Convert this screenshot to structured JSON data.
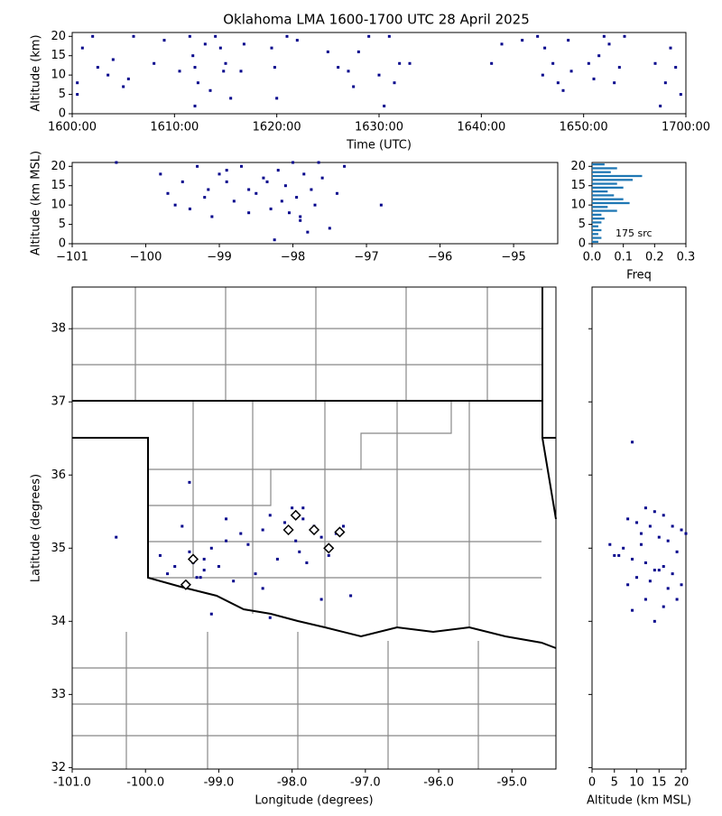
{
  "chart_data": [
    {
      "type": "scatter",
      "title": "Oklahoma LMA 1600-1700 UTC 28 April 2025",
      "xlabel": "Time (UTC)",
      "ylabel": "Altitude (km)",
      "color": "#00008b",
      "xlim": [
        0,
        60
      ],
      "xticks": [
        {
          "value": 0,
          "label": "1600:00"
        },
        {
          "value": 10,
          "label": "1610:00"
        },
        {
          "value": 20,
          "label": "1620:00"
        },
        {
          "value": 30,
          "label": "1630:00"
        },
        {
          "value": 40,
          "label": "1640:00"
        },
        {
          "value": 50,
          "label": "1650:00"
        },
        {
          "value": 60,
          "label": "1700:00"
        }
      ],
      "ylim": [
        0,
        21
      ],
      "yticks": [
        0,
        5,
        10,
        15,
        20
      ],
      "x": [
        1,
        2,
        0.5,
        0.5,
        2.5,
        3.5,
        4,
        5,
        5.5,
        6,
        8,
        9,
        10.5,
        11.5,
        11.8,
        12,
        12.3,
        12,
        13,
        13.5,
        14,
        14.5,
        14.8,
        15,
        15.5,
        16.5,
        16.8,
        19.5,
        19.8,
        20,
        21,
        22,
        25,
        26,
        27,
        27.5,
        28,
        29,
        30,
        30.5,
        31,
        31.5,
        32,
        33,
        41,
        42,
        44,
        45.5,
        46,
        46.2,
        47,
        47.5,
        48,
        48.5,
        48.8,
        50.5,
        51,
        51.5,
        52,
        52.5,
        53,
        53.5,
        54,
        57,
        58,
        58.5,
        59,
        59.5,
        57.5
      ],
      "y": [
        17,
        20,
        8,
        5,
        12,
        10,
        14,
        7,
        9,
        20,
        13,
        19,
        11,
        20,
        15,
        12,
        8,
        2,
        18,
        6,
        20,
        17,
        11,
        13,
        4,
        11,
        18,
        17,
        12,
        4,
        20,
        19,
        16,
        12,
        11,
        7,
        16,
        20,
        10,
        2,
        20,
        8,
        13,
        13,
        13,
        18,
        19,
        20,
        10,
        17,
        13,
        8,
        6,
        19,
        11,
        13,
        9,
        15,
        20,
        18,
        8,
        12,
        20,
        13,
        8,
        17,
        12,
        5,
        2
      ]
    },
    {
      "type": "scatter",
      "ylabel": "Altitude (km MSL)",
      "color": "#00008b",
      "xlim": [
        -101,
        -94.4
      ],
      "xticks": [
        {
          "value": -101,
          "label": "−101"
        },
        {
          "value": -100,
          "label": "−100"
        },
        {
          "value": -99,
          "label": "−99"
        },
        {
          "value": -98,
          "label": "−98"
        },
        {
          "value": -97,
          "label": "−97"
        },
        {
          "value": -96,
          "label": "−96"
        },
        {
          "value": -95,
          "label": "−95"
        }
      ],
      "ylim": [
        0,
        21
      ],
      "yticks": [
        0,
        5,
        10,
        15,
        20
      ],
      "x": [
        -100.4,
        -99.8,
        -99.7,
        -99.6,
        -99.5,
        -99.4,
        -99.3,
        -99.2,
        -99.1,
        -99.0,
        -98.9,
        -98.8,
        -98.7,
        -98.6,
        -98.5,
        -98.4,
        -98.3,
        -98.25,
        -98.2,
        -98.1,
        -98.05,
        -98.0,
        -97.95,
        -97.9,
        -97.85,
        -97.8,
        -97.75,
        -97.7,
        -97.6,
        -97.5,
        -97.4,
        -97.3,
        -96.8,
        -98.15,
        -98.35,
        -99.15,
        -98.9,
        -97.9,
        -97.65,
        -98.6
      ],
      "y": [
        21,
        18,
        13,
        10,
        16,
        9,
        20,
        12,
        7,
        18,
        16,
        11,
        20,
        14,
        13,
        17,
        9,
        1,
        19,
        15,
        8,
        21,
        12,
        6,
        18,
        3,
        14,
        10,
        17,
        4,
        13,
        20,
        10,
        11,
        16,
        14,
        19,
        7,
        21,
        8
      ]
    },
    {
      "type": "histogram",
      "xlabel": "Freq",
      "color": "#1f77b4",
      "annotation": "175 src",
      "xlim": [
        0,
        0.3
      ],
      "xticks": [
        {
          "value": 0,
          "label": "0.0"
        },
        0.1,
        0.2,
        0.3
      ],
      "ylim": [
        0,
        21
      ],
      "yticks": [
        0,
        5,
        10,
        15,
        20
      ],
      "bins": [
        0,
        1,
        2,
        3,
        4,
        5,
        6,
        7,
        8,
        9,
        10,
        11,
        12,
        13,
        14,
        15,
        16,
        17,
        18,
        19,
        20,
        21
      ],
      "values": [
        0.02,
        0.03,
        0.02,
        0.03,
        0.02,
        0.03,
        0.04,
        0.03,
        0.08,
        0.05,
        0.12,
        0.1,
        0.07,
        0.05,
        0.1,
        0.08,
        0.13,
        0.16,
        0.06,
        0.08,
        0.04
      ]
    },
    {
      "type": "map",
      "xlabel": "Longitude (degrees)",
      "ylabel": "Latitude (degrees)",
      "color": "#00008b",
      "xlim": [
        -101,
        -94.4
      ],
      "xticks": [
        {
          "value": -101,
          "label": "-101.0"
        },
        {
          "value": -100,
          "label": "-100.0"
        },
        {
          "value": -99,
          "label": "-99.0"
        },
        {
          "value": -98,
          "label": "-98.0"
        },
        {
          "value": -97,
          "label": "-97.0"
        },
        {
          "value": -96,
          "label": "-96.0"
        },
        {
          "value": -95,
          "label": "-95.0"
        }
      ],
      "ylim": [
        31.98,
        38.57
      ],
      "yticks": [
        32,
        33,
        34,
        35,
        36,
        37,
        38
      ],
      "x": [
        -100.4,
        -99.8,
        -99.7,
        -99.6,
        -99.5,
        -99.4,
        -99.35,
        -99.3,
        -99.2,
        -99.1,
        -99.0,
        -98.9,
        -98.8,
        -98.7,
        -98.6,
        -98.5,
        -98.4,
        -98.3,
        -98.2,
        -98.1,
        -98.0,
        -97.95,
        -97.9,
        -97.85,
        -97.8,
        -97.7,
        -97.6,
        -97.5,
        -97.4,
        -97.3,
        -97.2,
        -99.1,
        -98.3,
        -99.4,
        -99.25,
        -98.9,
        -97.85,
        -98.4,
        -99.2,
        -97.6
      ],
      "y": [
        35.15,
        34.9,
        34.65,
        34.75,
        35.3,
        34.95,
        34.8,
        34.6,
        34.7,
        35.0,
        34.75,
        35.1,
        34.55,
        35.2,
        35.05,
        34.65,
        35.25,
        35.45,
        34.85,
        35.35,
        35.55,
        35.1,
        34.95,
        35.4,
        34.8,
        35.3,
        35.15,
        34.9,
        35.2,
        35.3,
        34.35,
        34.1,
        34.05,
        35.9,
        34.6,
        35.4,
        35.55,
        34.45,
        34.85,
        34.3
      ],
      "stations": {
        "x": [
          -97.95,
          -98.05,
          -97.7,
          -97.35,
          -97.5,
          -99.35,
          -99.45
        ],
        "y": [
          35.45,
          35.25,
          35.25,
          35.22,
          35.0,
          34.85,
          34.5
        ]
      }
    },
    {
      "type": "scatter",
      "xlabel": "Altitude (km MSL)",
      "color": "#00008b",
      "xlim": [
        0,
        21
      ],
      "xticks": [
        0,
        5,
        10,
        15,
        20
      ],
      "ylim": [
        31.98,
        38.57
      ],
      "yticks": [
        32,
        33,
        34,
        35,
        36,
        37,
        38
      ],
      "x": [
        9,
        12,
        14,
        16,
        8,
        10,
        13,
        18,
        20,
        11,
        15,
        17,
        4,
        7,
        19,
        6,
        9,
        12,
        16,
        14,
        18,
        10,
        13,
        20,
        5,
        11,
        15,
        17,
        19,
        8,
        12,
        16,
        14,
        21,
        9
      ],
      "y": [
        36.45,
        35.55,
        35.5,
        35.45,
        35.4,
        35.35,
        35.3,
        35.3,
        35.25,
        35.2,
        35.15,
        35.1,
        35.05,
        35.0,
        34.95,
        34.9,
        34.85,
        34.8,
        34.75,
        34.7,
        34.65,
        34.6,
        34.55,
        34.5,
        34.9,
        35.05,
        34.7,
        34.45,
        34.3,
        34.5,
        34.3,
        34.2,
        34.0,
        35.2,
        34.15
      ]
    }
  ]
}
